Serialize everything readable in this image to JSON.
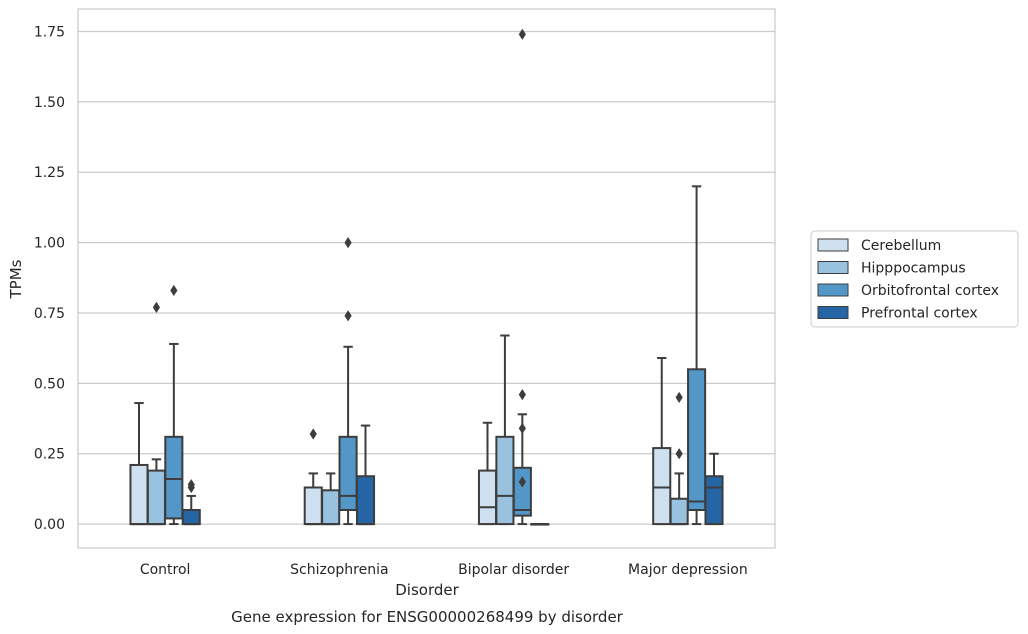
{
  "chart_data": {
    "type": "box",
    "xlabel": "Disorder",
    "ylabel": "TPMs",
    "caption": "Gene expression for ENSG00000268499 by disorder",
    "ylim": [
      -0.085,
      1.83
    ],
    "yticks": [
      "0.00",
      "0.25",
      "0.50",
      "0.75",
      "1.00",
      "1.25",
      "1.50",
      "1.75"
    ],
    "grid": "horizontal",
    "legend_placement": "right",
    "categories": [
      "Control",
      "Schizophrenia",
      "Bipolar disorder",
      "Major depression"
    ],
    "series": [
      {
        "name": "Cerebellum",
        "color": "#cfe0f1",
        "boxes": [
          {
            "q1": 0.0,
            "median": 0.0,
            "q3": 0.21,
            "whislo": 0.0,
            "whishi": 0.43,
            "fliers": []
          },
          {
            "q1": 0.0,
            "median": 0.0,
            "q3": 0.13,
            "whislo": 0.0,
            "whishi": 0.18,
            "fliers": [
              0.32
            ]
          },
          {
            "q1": 0.0,
            "median": 0.06,
            "q3": 0.19,
            "whislo": 0.0,
            "whishi": 0.36,
            "fliers": []
          },
          {
            "q1": 0.0,
            "median": 0.13,
            "q3": 0.27,
            "whislo": 0.0,
            "whishi": 0.59,
            "fliers": []
          }
        ]
      },
      {
        "name": "Hipppocampus",
        "color": "#98c2df",
        "boxes": [
          {
            "q1": 0.0,
            "median": 0.0,
            "q3": 0.19,
            "whislo": 0.0,
            "whishi": 0.23,
            "fliers": [
              0.77
            ]
          },
          {
            "q1": 0.0,
            "median": 0.0,
            "q3": 0.12,
            "whislo": 0.0,
            "whishi": 0.18,
            "fliers": []
          },
          {
            "q1": 0.0,
            "median": 0.1,
            "q3": 0.31,
            "whislo": 0.0,
            "whishi": 0.67,
            "fliers": []
          },
          {
            "q1": 0.0,
            "median": 0.0,
            "q3": 0.09,
            "whislo": 0.0,
            "whishi": 0.18,
            "fliers": [
              0.25,
              0.45
            ]
          }
        ]
      },
      {
        "name": "Orbitofrontal cortex",
        "color": "#5297c7",
        "boxes": [
          {
            "q1": 0.02,
            "median": 0.16,
            "q3": 0.31,
            "whislo": 0.0,
            "whishi": 0.64,
            "fliers": [
              0.83
            ]
          },
          {
            "q1": 0.05,
            "median": 0.1,
            "q3": 0.31,
            "whislo": 0.0,
            "whishi": 0.63,
            "fliers": [
              0.74,
              1.0
            ]
          },
          {
            "q1": 0.03,
            "median": 0.05,
            "q3": 0.2,
            "whislo": 0.0,
            "whishi": 0.39,
            "fliers": [
              0.15,
              0.34,
              0.46,
              1.74
            ]
          },
          {
            "q1": 0.05,
            "median": 0.08,
            "q3": 0.55,
            "whislo": 0.0,
            "whishi": 1.2,
            "fliers": []
          }
        ]
      },
      {
        "name": "Prefrontal cortex",
        "color": "#2565a6",
        "boxes": [
          {
            "q1": 0.0,
            "median": 0.0,
            "q3": 0.05,
            "whislo": 0.0,
            "whishi": 0.1,
            "fliers": [
              0.13,
              0.14
            ]
          },
          {
            "q1": 0.0,
            "median": 0.0,
            "q3": 0.17,
            "whislo": 0.0,
            "whishi": 0.35,
            "fliers": []
          },
          {
            "q1": 0.0,
            "median": 0.0,
            "q3": 0.0,
            "whislo": 0.0,
            "whishi": 0.0,
            "fliers": []
          },
          {
            "q1": 0.0,
            "median": 0.13,
            "q3": 0.17,
            "whislo": 0.0,
            "whishi": 0.25,
            "fliers": []
          }
        ]
      }
    ]
  }
}
